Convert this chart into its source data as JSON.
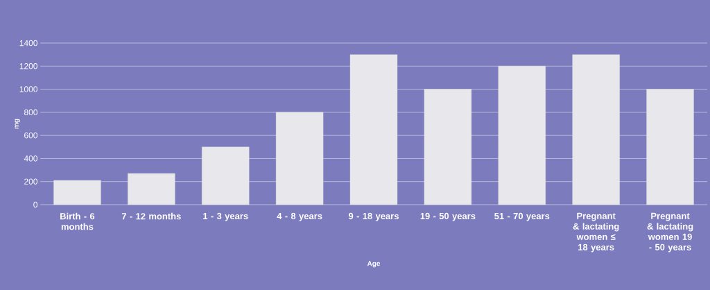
{
  "chart_data": {
    "type": "bar",
    "categories": [
      "Birth - 6 months",
      "7 - 12 months",
      "1 - 3 years",
      "4 - 8 years",
      "9 - 18 years",
      "19 - 50 years",
      "51 - 70 years",
      "Pregnant & lactating women ≤ 18 years",
      "Pregnant & lactating women 19 - 50 years"
    ],
    "values": [
      210,
      270,
      500,
      800,
      1300,
      1000,
      1200,
      1300,
      1000
    ],
    "color": "#e8e8ec",
    "xlabel": "Age",
    "ylabel": "mg",
    "ylim": [
      0,
      1400
    ],
    "yticks": [
      0,
      200,
      400,
      600,
      800,
      1000,
      1200,
      1400
    ],
    "grid": "y"
  }
}
